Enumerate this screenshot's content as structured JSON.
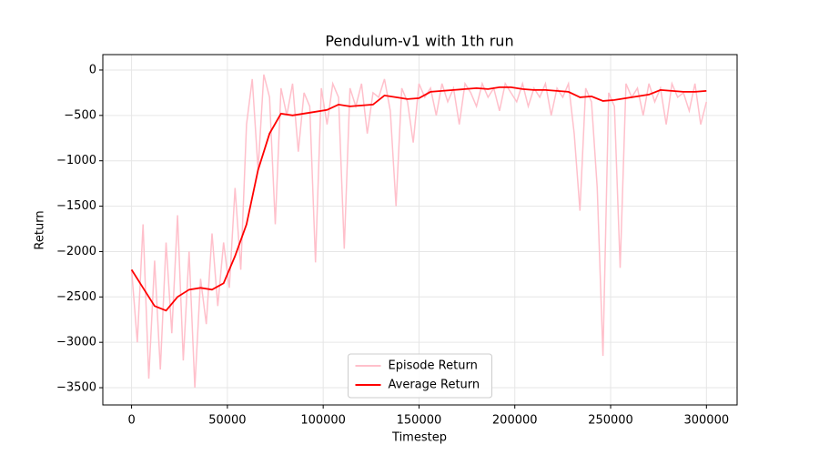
{
  "chart_data": {
    "type": "line",
    "title": "Pendulum-v1 with 1th run",
    "xlabel": "Timestep",
    "ylabel": "Return",
    "xlim": [
      -15000,
      316000
    ],
    "ylim": [
      -3690,
      170
    ],
    "xticks": [
      0,
      50000,
      100000,
      150000,
      200000,
      250000,
      300000
    ],
    "yticks": [
      {
        "value": -3500,
        "label": "−3500"
      },
      {
        "value": -3000,
        "label": "−3000"
      },
      {
        "value": -2500,
        "label": "−2500"
      },
      {
        "value": -2000,
        "label": "−2000"
      },
      {
        "value": -1500,
        "label": "−1500"
      },
      {
        "value": -1000,
        "label": "−1000"
      },
      {
        "value": -500,
        "label": "−500"
      },
      0
    ],
    "grid": true,
    "legend": "lower center",
    "series": [
      {
        "name": "Episode Return",
        "color": "#ffc0cb",
        "x": [
          0,
          3000,
          6000,
          9000,
          12000,
          15000,
          18000,
          21000,
          24000,
          27000,
          30000,
          33000,
          36000,
          39000,
          42000,
          45000,
          48000,
          51000,
          54000,
          57000,
          60000,
          63000,
          66000,
          69000,
          72000,
          75000,
          78000,
          81000,
          84000,
          87000,
          90000,
          93000,
          96000,
          99000,
          102000,
          105000,
          108000,
          111000,
          114000,
          117000,
          120000,
          123000,
          126000,
          129000,
          132000,
          135000,
          138000,
          141000,
          144000,
          147000,
          150000,
          153000,
          156000,
          159000,
          162000,
          165000,
          168000,
          171000,
          174000,
          177000,
          180000,
          183000,
          186000,
          189000,
          192000,
          195000,
          198000,
          201000,
          204000,
          207000,
          210000,
          213000,
          216000,
          219000,
          222000,
          225000,
          228000,
          231000,
          234000,
          237000,
          240000,
          243000,
          246000,
          249000,
          252000,
          255000,
          258000,
          261000,
          264000,
          267000,
          270000,
          273000,
          276000,
          279000,
          282000,
          285000,
          288000,
          291000,
          294000,
          297000,
          300000
        ],
        "values": [
          -2200,
          -3000,
          -1700,
          -3400,
          -2100,
          -3300,
          -1900,
          -2900,
          -1600,
          -3200,
          -2000,
          -3500,
          -2300,
          -2800,
          -1800,
          -2600,
          -1900,
          -2400,
          -1300,
          -2200,
          -600,
          -100,
          -1100,
          -50,
          -300,
          -1700,
          -200,
          -500,
          -150,
          -900,
          -250,
          -400,
          -2120,
          -200,
          -600,
          -150,
          -300,
          -1970,
          -200,
          -400,
          -150,
          -700,
          -250,
          -300,
          -100,
          -450,
          -1500,
          -200,
          -350,
          -800,
          -150,
          -300,
          -200,
          -500,
          -150,
          -350,
          -200,
          -600,
          -150,
          -250,
          -400,
          -150,
          -300,
          -200,
          -450,
          -150,
          -250,
          -350,
          -150,
          -400,
          -200,
          -300,
          -150,
          -500,
          -200,
          -300,
          -150,
          -700,
          -1550,
          -200,
          -350,
          -1300,
          -3150,
          -250,
          -400,
          -2180,
          -150,
          -300,
          -200,
          -500,
          -150,
          -350,
          -200,
          -600,
          -150,
          -300,
          -250,
          -450,
          -150,
          -600,
          -350
        ]
      },
      {
        "name": "Average Return",
        "color": "#ff0000",
        "x": [
          0,
          6000,
          12000,
          18000,
          24000,
          30000,
          36000,
          42000,
          48000,
          54000,
          60000,
          66000,
          72000,
          78000,
          84000,
          90000,
          96000,
          102000,
          108000,
          114000,
          120000,
          126000,
          132000,
          138000,
          144000,
          150000,
          156000,
          162000,
          168000,
          174000,
          180000,
          186000,
          192000,
          198000,
          204000,
          210000,
          216000,
          222000,
          228000,
          234000,
          240000,
          246000,
          252000,
          258000,
          264000,
          270000,
          276000,
          282000,
          288000,
          294000,
          300000
        ],
        "values": [
          -2200,
          -2400,
          -2600,
          -2650,
          -2500,
          -2420,
          -2400,
          -2420,
          -2350,
          -2050,
          -1700,
          -1100,
          -700,
          -480,
          -500,
          -480,
          -460,
          -440,
          -380,
          -400,
          -390,
          -380,
          -280,
          -300,
          -320,
          -310,
          -240,
          -230,
          -220,
          -210,
          -200,
          -210,
          -190,
          -190,
          -210,
          -220,
          -220,
          -230,
          -240,
          -300,
          -290,
          -340,
          -330,
          -310,
          -290,
          -270,
          -220,
          -230,
          -240,
          -240,
          -230
        ]
      }
    ]
  }
}
